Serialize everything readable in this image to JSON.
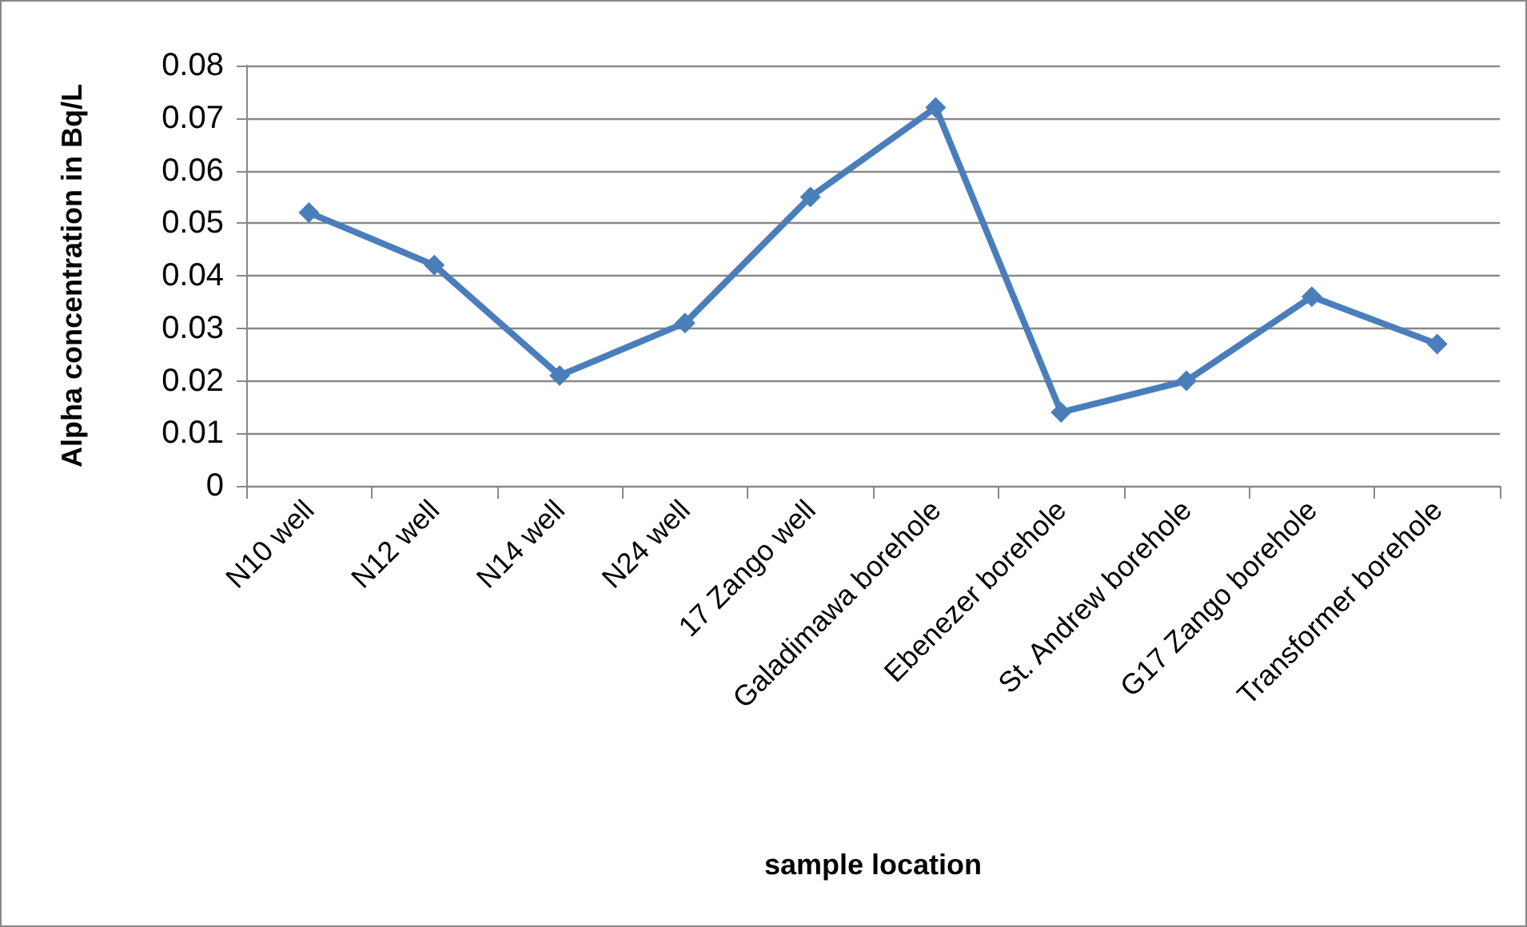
{
  "chart_data": {
    "type": "line",
    "xlabel": "sample location",
    "ylabel": "Alpha concentration in Bq/L",
    "categories": [
      "N10 well",
      "N12 well",
      "N14 well",
      "N24 well",
      "17 Zango well",
      "Galadimawa borehole",
      "Ebenezer borehole",
      "St. Andrew borehole",
      "G17 Zango borehole",
      "Transformer borehole"
    ],
    "series": [
      {
        "color": "#4a7ebb",
        "values": [
          0.052,
          0.042,
          0.021,
          0.031,
          0.055,
          0.072,
          0.014,
          0.02,
          0.036,
          0.027
        ]
      }
    ],
    "ylim": [
      0,
      0.08
    ],
    "yticks": [
      0,
      0.01,
      0.02,
      0.03,
      0.04,
      0.05,
      0.06,
      0.07,
      0.08
    ],
    "grid": "y",
    "marker": "diamond",
    "line_style": "solid"
  }
}
